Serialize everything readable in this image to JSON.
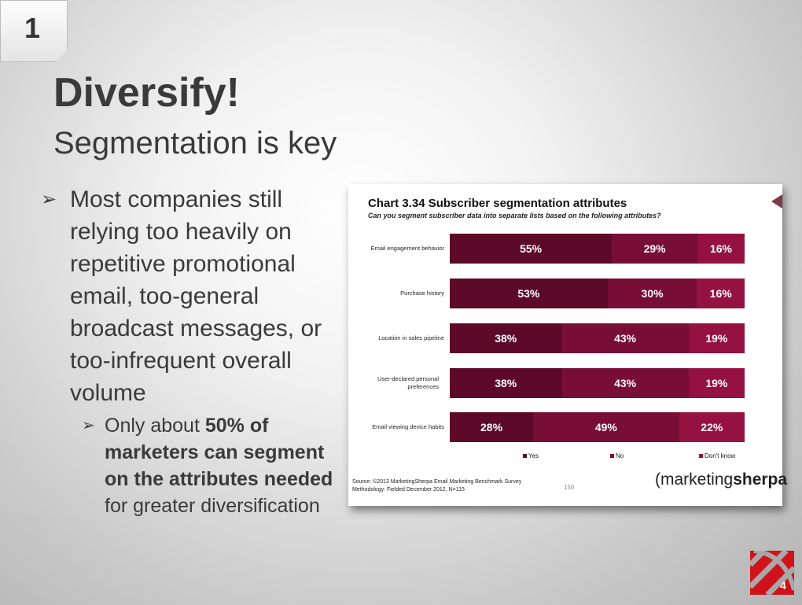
{
  "slide": {
    "section_number": "1",
    "title": "Diversify!",
    "subtitle": "Segmentation is key",
    "page_number": "4",
    "bullet": "Most companies still relying too heavily on repetitive promotional email, too-general broadcast messages, or too-infrequent overall volume",
    "sub_bullet": {
      "pre": "Only about ",
      "bold": "50% of marketers can segment on the attributes needed",
      "post": " for greater diversification"
    }
  },
  "chart_data": {
    "type": "bar",
    "orientation": "horizontal",
    "stacked": true,
    "title": "Chart 3.34 Subscriber segmentation attributes",
    "subtitle": "Can you segment subscriber data into separate lists based on the following attributes?",
    "categories": [
      "Email engagement behavior",
      "Purchase history",
      "Location in sales pipeline",
      "User-declared personal preferences",
      "Email viewing device habits"
    ],
    "series": [
      {
        "name": "Yes",
        "color": "#5c0a27",
        "values": [
          55,
          53,
          38,
          38,
          28
        ]
      },
      {
        "name": "No",
        "color": "#780d35",
        "values": [
          29,
          30,
          43,
          43,
          49
        ]
      },
      {
        "name": "Don't know",
        "color": "#951240",
        "values": [
          16,
          16,
          19,
          19,
          22
        ]
      }
    ],
    "value_suffix": "%",
    "legend": "bottom",
    "source": "Source: ©2013 MarketingSherpa Email Marketing Benchmark Survey",
    "methodology": "Methodology: Fielded December 2012, N=115",
    "page": "150",
    "logo": {
      "light": "marketing",
      "bold": "sherpa"
    }
  }
}
